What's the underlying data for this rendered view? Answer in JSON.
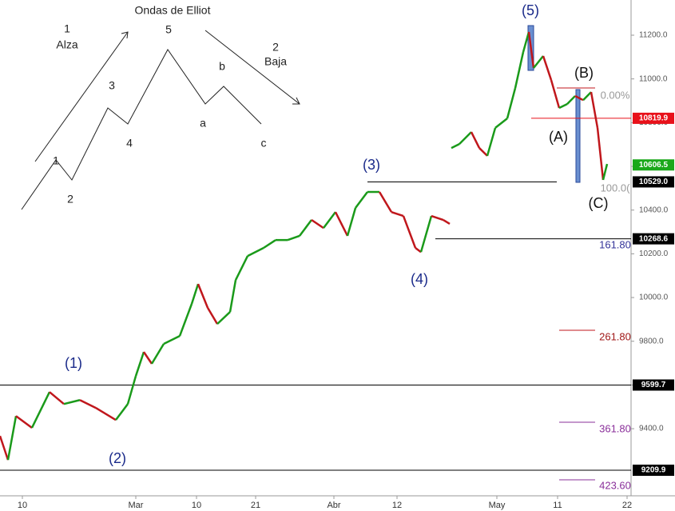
{
  "chart_data": {
    "type": "line",
    "up_color": "#1a9a1a",
    "down_color": "#c0171c",
    "xlim": [
      0,
      158
    ],
    "ylim": [
      9093,
      11361
    ],
    "xticks": [
      {
        "value": 5.6,
        "label": "10"
      },
      {
        "value": 34,
        "label": "Mar"
      },
      {
        "value": 49.2,
        "label": "10"
      },
      {
        "value": 64,
        "label": "21"
      },
      {
        "value": 83.6,
        "label": "Abr"
      },
      {
        "value": 99.4,
        "label": "12"
      },
      {
        "value": 124.4,
        "label": "May"
      },
      {
        "value": 139.6,
        "label": "11"
      },
      {
        "value": 157,
        "label": "22"
      }
    ],
    "yticks": [
      {
        "value": 9400,
        "label": "9400.0"
      },
      {
        "value": 9600,
        "label": "9600.0"
      },
      {
        "value": 9800,
        "label": "9800.0"
      },
      {
        "value": 10000,
        "label": "10000.0"
      },
      {
        "value": 10200,
        "label": "10200.0"
      },
      {
        "value": 10400,
        "label": "10400.0"
      },
      {
        "value": 10600,
        "label": "10600.0"
      },
      {
        "value": 10800,
        "label": "10800.0"
      },
      {
        "value": 11000,
        "label": "11000.0"
      },
      {
        "value": 11200,
        "label": "11200.0"
      }
    ],
    "series": [
      {
        "x": [
          0,
          2,
          4,
          8,
          12.4,
          16,
          20,
          24,
          29,
          32,
          34,
          36,
          38,
          41,
          45,
          48,
          49.6,
          52,
          54.4,
          57.6,
          59,
          62,
          66,
          69,
          72,
          75,
          78,
          81,
          84,
          87,
          89,
          92,
          95,
          98,
          101,
          104,
          105.4,
          108,
          111,
          112.6
        ],
        "values": [
          9367,
          9257,
          9458,
          9404,
          9568,
          9513,
          9531,
          9495,
          9440,
          9513,
          9641,
          9751,
          9697,
          9788,
          9824,
          9971,
          10062,
          9953,
          9879,
          9934,
          10080,
          10190,
          10227,
          10263,
          10263,
          10282,
          10355,
          10318,
          10391,
          10282,
          10410,
          10483,
          10483,
          10391,
          10373,
          10227,
          10208,
          10373,
          10355,
          10337
        ]
      },
      {
        "x": [
          113,
          115,
          118,
          120,
          122,
          124,
          127,
          129,
          131,
          132.4,
          133.6,
          136,
          138,
          140,
          142,
          144,
          146,
          148,
          149.6,
          151,
          152
        ],
        "values": [
          10684,
          10702,
          10757,
          10684,
          10648,
          10776,
          10819,
          10958,
          11123,
          11215,
          11050,
          11105,
          10995,
          10867,
          10885,
          10922,
          10903,
          10940,
          10776,
          10538,
          10611
        ]
      }
    ],
    "levels": [
      {
        "value": 11360,
        "label": "",
        "color": ""
      }
    ],
    "price_labels": [
      {
        "value": 10819.9,
        "label": "10819.9",
        "color": "#e8111a"
      },
      {
        "value": 10606.5,
        "label": "10606.5",
        "color": "#1aa81a"
      },
      {
        "value": 10529.0,
        "label": "10529.0",
        "color": "#000000"
      },
      {
        "value": 10268.6,
        "label": "10268.6",
        "color": "#000000"
      },
      {
        "value": 9599.7,
        "label": "9599.7",
        "color": "#000000"
      },
      {
        "value": 9209.9,
        "label": "9209.9",
        "color": "#000000"
      }
    ],
    "fib_labels": [
      {
        "label": "0.00%",
        "color": "#999999"
      },
      {
        "label": "100.0(",
        "color": "#999999"
      },
      {
        "label": "161.80",
        "color": "#333399"
      },
      {
        "label": "261.80",
        "color": "#a01818"
      },
      {
        "label": "361.80",
        "color": "#8a2f9a"
      },
      {
        "label": "423.60",
        "color": "#8a2f9a"
      }
    ],
    "wave_labels": [
      "(1)",
      "(2)",
      "(3)",
      "(4)",
      "(5)",
      "(A)",
      "(B)",
      "(C)"
    ]
  },
  "diagram": {
    "title": "Ondas de Elliot",
    "labels": [
      "1",
      "Alza",
      "5",
      "2",
      "Baja",
      "3",
      "b",
      "4",
      "a",
      "c",
      "1",
      "2"
    ]
  }
}
